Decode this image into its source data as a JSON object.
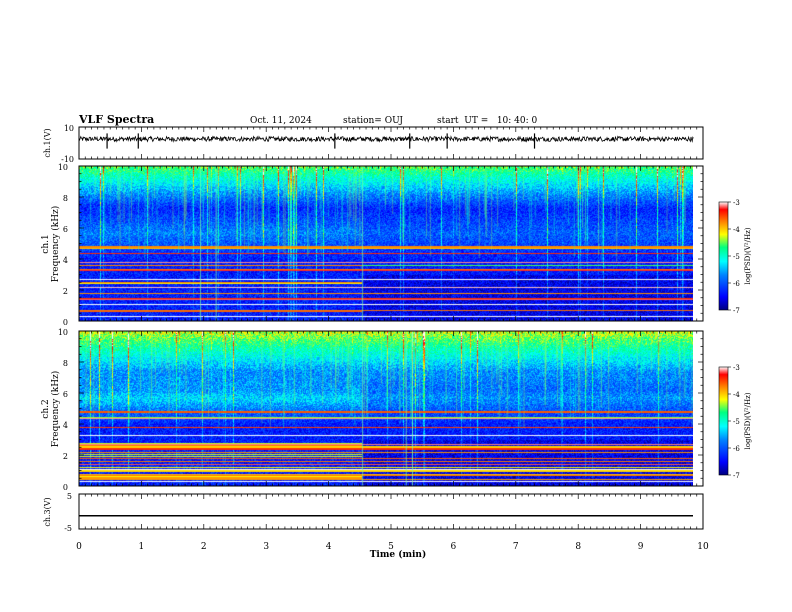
{
  "header": {
    "title": "VLF Spectra",
    "date": "Oct. 11, 2024",
    "station": "station= OUJ",
    "start": "start  UT =   10: 40: 0"
  },
  "chart_data": [
    {
      "type": "line",
      "name": "ch.1 waveform",
      "ylabel": "ch.1(V)",
      "ylim": [
        -10,
        10
      ],
      "yticks": [
        "10",
        "-10"
      ],
      "xlim": [
        0,
        10
      ],
      "baseline": 2.5,
      "amplitude": 1.5,
      "spikes_at_min": [
        0.45,
        0.95,
        4.1,
        5.3,
        5.9,
        7.3
      ]
    },
    {
      "type": "heatmap",
      "name": "ch.1 spectrogram",
      "ylabel": "ch.1\nFrequency (kHz)",
      "ylim": [
        0,
        10
      ],
      "yticks": [
        "0",
        "2",
        "4",
        "6",
        "8",
        "10"
      ],
      "xlim": [
        0,
        10
      ],
      "data_end_min": 9.85,
      "colorbar": {
        "label": "log(PSD)(V²/Hz)",
        "range": [
          -7,
          -3
        ],
        "ticks": [
          "-3",
          "-4",
          "-5",
          "-6",
          "-7"
        ]
      }
    },
    {
      "type": "heatmap",
      "name": "ch.2 spectrogram",
      "ylabel": "ch.2\nFrequency (kHz)",
      "ylim": [
        0,
        10
      ],
      "yticks": [
        "0",
        "2",
        "4",
        "6",
        "8",
        "10"
      ],
      "xlim": [
        0,
        10
      ],
      "data_end_min": 9.85,
      "colorbar": {
        "label": "log(PSD)(V²/Hz)",
        "range": [
          -7,
          -3
        ],
        "ticks": [
          "-3",
          "-4",
          "-5",
          "-6",
          "-7"
        ]
      }
    },
    {
      "type": "line",
      "name": "ch.3 waveform",
      "ylabel": "ch.3(V)",
      "ylim": [
        -5,
        5
      ],
      "yticks": [
        "5",
        "-5"
      ],
      "xlim": [
        0,
        10
      ],
      "baseline": -1.2
    }
  ],
  "xaxis": {
    "label": "Time (min)",
    "ticks": [
      "0",
      "1",
      "2",
      "3",
      "4",
      "5",
      "6",
      "7",
      "8",
      "9",
      "10"
    ]
  },
  "colors": {
    "waveform": "#000000",
    "frame": "#000000",
    "colormap": [
      "#000080",
      "#0000ff",
      "#0080ff",
      "#00ffff",
      "#00ff80",
      "#ffff00",
      "#ff8000",
      "#ff0000",
      "#ffffff"
    ]
  }
}
